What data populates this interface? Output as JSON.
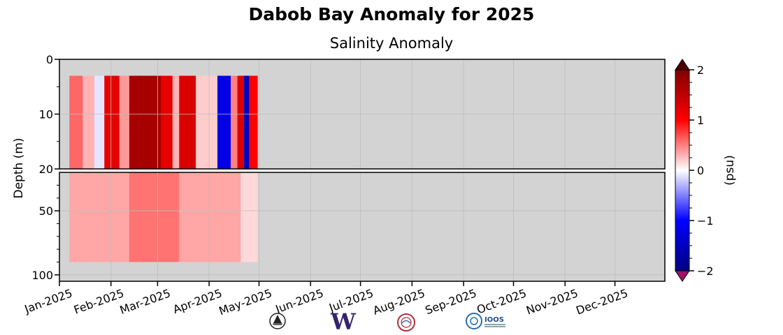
{
  "chart_data": {
    "type": "heatmap",
    "title": "Dabob Bay Anomaly for 2025",
    "subtitle": "Salinity Anomaly",
    "ylabel": "Depth (m)",
    "colorbar_label": "(psu)",
    "x_ticks": [
      "Jan-2025",
      "Feb-2025",
      "Mar-2025",
      "Apr-2025",
      "May-2025",
      "Jun-2025",
      "Jul-2025",
      "Aug-2025",
      "Sep-2025",
      "Oct-2025",
      "Nov-2025",
      "Dec-2025"
    ],
    "x_range": [
      "2025-01-01",
      "2025-12-31"
    ],
    "y_upper_ticks": [
      0,
      10,
      20
    ],
    "y_lower_ticks": [
      20,
      50,
      100
    ],
    "y_upper_range": [
      0,
      20
    ],
    "y_lower_range": [
      20,
      105
    ],
    "data_depth_range_m": [
      3,
      90
    ],
    "data_time_range": [
      "2025-01-07",
      "2025-04-30"
    ],
    "colorbar_ticks": [
      -2,
      -1,
      0,
      1,
      2
    ],
    "colorbar_range": [
      -2,
      2
    ],
    "colormap": [
      "#000080",
      "#0000ff",
      "#ffffff",
      "#ff0000",
      "#800000"
    ],
    "missing_color": "#d3d3d3",
    "grid": true,
    "upper_anomaly_bands": [
      {
        "start": "2025-01-07",
        "end": "2025-01-15",
        "value": 0.6
      },
      {
        "start": "2025-01-15",
        "end": "2025-01-22",
        "value": 0.3
      },
      {
        "start": "2025-01-22",
        "end": "2025-01-28",
        "value": -0.1
      },
      {
        "start": "2025-01-28",
        "end": "2025-02-06",
        "value": 1.2
      },
      {
        "start": "2025-02-06",
        "end": "2025-02-12",
        "value": 0.4
      },
      {
        "start": "2025-02-12",
        "end": "2025-03-03",
        "value": 1.7
      },
      {
        "start": "2025-03-03",
        "end": "2025-03-10",
        "value": 1.2
      },
      {
        "start": "2025-03-10",
        "end": "2025-03-14",
        "value": 0.3
      },
      {
        "start": "2025-03-14",
        "end": "2025-03-24",
        "value": 1.3
      },
      {
        "start": "2025-03-24",
        "end": "2025-04-06",
        "value": 0.2
      },
      {
        "start": "2025-04-06",
        "end": "2025-04-14",
        "value": -1.2
      },
      {
        "start": "2025-04-14",
        "end": "2025-04-18",
        "value": 0.5
      },
      {
        "start": "2025-04-18",
        "end": "2025-04-22",
        "value": 1.3
      },
      {
        "start": "2025-04-22",
        "end": "2025-04-25",
        "value": -1.5
      },
      {
        "start": "2025-04-25",
        "end": "2025-04-30",
        "value": 1.0
      }
    ],
    "lower_anomaly_bands": [
      {
        "start": "2025-01-07",
        "end": "2025-02-12",
        "value": 0.35
      },
      {
        "start": "2025-02-12",
        "end": "2025-03-14",
        "value": 0.55
      },
      {
        "start": "2025-03-14",
        "end": "2025-04-20",
        "value": 0.35
      },
      {
        "start": "2025-04-20",
        "end": "2025-04-30",
        "value": 0.15
      }
    ]
  },
  "logos": [
    "noaa-logo-icon",
    "uw-logo-icon",
    "tribal-seal-icon",
    "ioos-logo-icon"
  ],
  "logo_text": {
    "uw": "W",
    "ioos": "IOOS"
  }
}
